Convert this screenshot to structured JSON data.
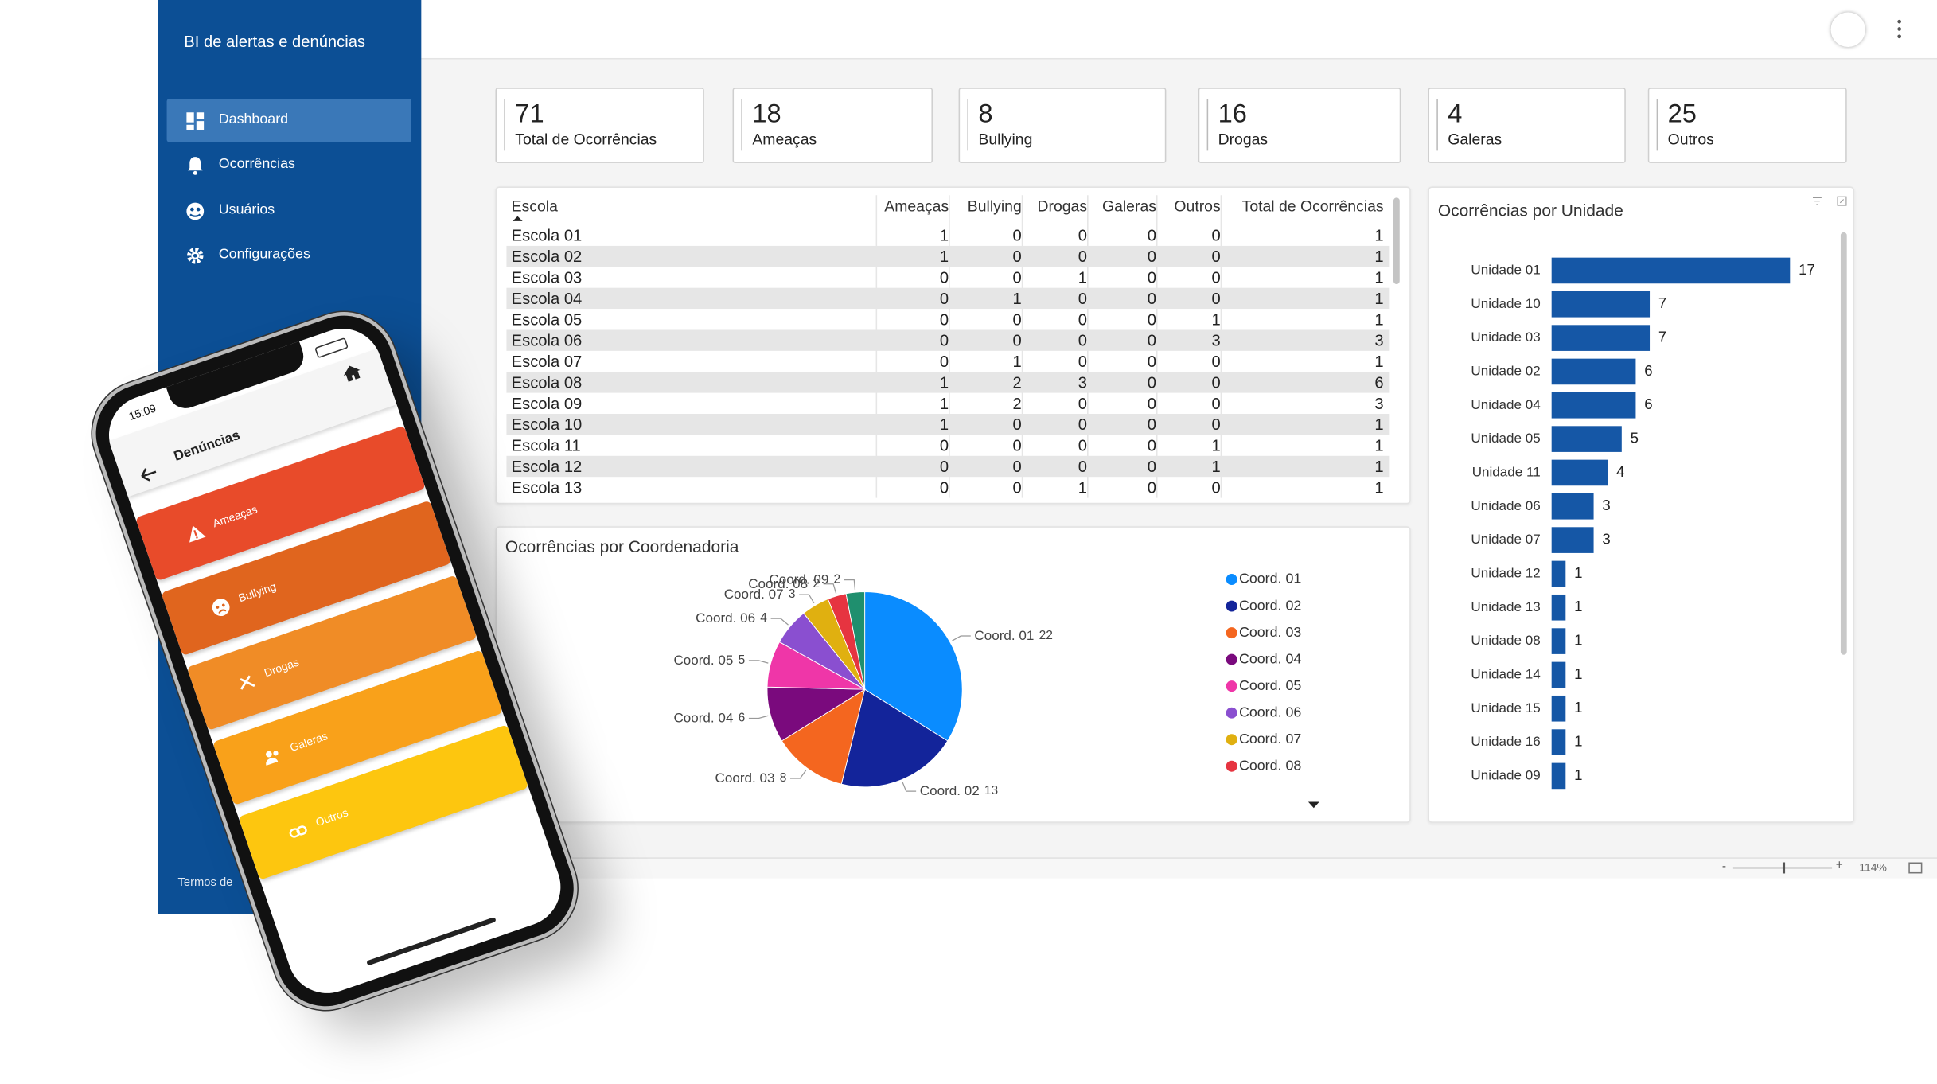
{
  "sidebar": {
    "title": "BI de alertas e denúncias",
    "nav": [
      "Dashboard",
      "Ocorrências",
      "Usuários",
      "Configurações"
    ],
    "footer": "Termos de"
  },
  "kpis": [
    {
      "value": 71,
      "label": "Total de Ocorrências"
    },
    {
      "value": 18,
      "label": "Ameaças"
    },
    {
      "value": 8,
      "label": "Bullying"
    },
    {
      "value": 16,
      "label": "Drogas"
    },
    {
      "value": 4,
      "label": "Galeras"
    },
    {
      "value": 25,
      "label": "Outros"
    }
  ],
  "table": {
    "columns": [
      "Escola",
      "Ameaças",
      "Bullying",
      "Drogas",
      "Galeras",
      "Outros",
      "Total de Ocorrências"
    ],
    "rows": [
      [
        "Escola 01",
        1,
        0,
        0,
        0,
        0,
        1
      ],
      [
        "Escola 02",
        1,
        0,
        0,
        0,
        0,
        1
      ],
      [
        "Escola 03",
        0,
        0,
        1,
        0,
        0,
        1
      ],
      [
        "Escola 04",
        0,
        1,
        0,
        0,
        0,
        1
      ],
      [
        "Escola 05",
        0,
        0,
        0,
        0,
        1,
        1
      ],
      [
        "Escola 06",
        0,
        0,
        0,
        0,
        3,
        3
      ],
      [
        "Escola 07",
        0,
        1,
        0,
        0,
        0,
        1
      ],
      [
        "Escola 08",
        1,
        2,
        3,
        0,
        0,
        6
      ],
      [
        "Escola 09",
        1,
        2,
        0,
        0,
        0,
        3
      ],
      [
        "Escola 10",
        1,
        0,
        0,
        0,
        0,
        1
      ],
      [
        "Escola 11",
        0,
        0,
        0,
        0,
        1,
        1
      ],
      [
        "Escola 12",
        0,
        0,
        0,
        0,
        1,
        1
      ],
      [
        "Escola 13",
        0,
        0,
        1,
        0,
        0,
        1
      ]
    ]
  },
  "chart_data": [
    {
      "type": "pie",
      "title": "Ocorrências por Coordenadoria",
      "categories": [
        "Coord. 01",
        "Coord. 02",
        "Coord. 03",
        "Coord. 04",
        "Coord. 05",
        "Coord. 06",
        "Coord. 07",
        "Coord. 08",
        "Coord. 09"
      ],
      "values": [
        22,
        13,
        8,
        6,
        5,
        4,
        3,
        2,
        2
      ],
      "colors": [
        "#0a8cff",
        "#13249a",
        "#f4661f",
        "#7a0a7d",
        "#ef36a8",
        "#8a4fd0",
        "#e0b010",
        "#e63440",
        "#1f8f6e"
      ],
      "legend_entries": 8
    },
    {
      "type": "barh",
      "title": "Ocorrências por Unidade",
      "categories": [
        "Unidade 01",
        "Unidade 10",
        "Unidade 03",
        "Unidade 02",
        "Unidade 04",
        "Unidade 05",
        "Unidade 11",
        "Unidade 06",
        "Unidade 07",
        "Unidade 12",
        "Unidade 13",
        "Unidade 08",
        "Unidade 14",
        "Unidade 15",
        "Unidade 16",
        "Unidade 09"
      ],
      "values": [
        17,
        7,
        7,
        6,
        6,
        5,
        4,
        3,
        3,
        1,
        1,
        1,
        1,
        1,
        1,
        1
      ],
      "color": "#1557a6"
    }
  ],
  "phone": {
    "time": "15:09",
    "title": "Denúncias",
    "buttons": [
      "Ameaças",
      "Bullying",
      "Drogas",
      "Galeras",
      "Outros"
    ]
  },
  "zoom": "114%"
}
